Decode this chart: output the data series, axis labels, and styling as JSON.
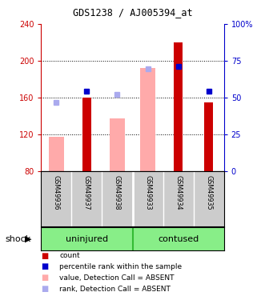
{
  "title": "GDS1238 / AJ005394_at",
  "samples": [
    "GSM49936",
    "GSM49937",
    "GSM49938",
    "GSM49933",
    "GSM49934",
    "GSM49935"
  ],
  "group_labels": [
    "uninjured",
    "contused"
  ],
  "group_label_text": "shock",
  "ylim_left": [
    80,
    240
  ],
  "ylim_right": [
    0,
    100
  ],
  "yticks_left": [
    80,
    120,
    160,
    200,
    240
  ],
  "yticks_right": [
    0,
    25,
    50,
    75,
    100
  ],
  "ytick_labels_left": [
    "80",
    "120",
    "160",
    "200",
    "240"
  ],
  "ytick_labels_right": [
    "0",
    "25",
    "50",
    "75",
    "100%"
  ],
  "bar_values_red": [
    null,
    160,
    null,
    null,
    220,
    155
  ],
  "bar_values_pink": [
    117,
    null,
    137,
    192,
    null,
    null
  ],
  "dot_values_blue": [
    null,
    167,
    null,
    null,
    194,
    167
  ],
  "dot_values_lightblue": [
    155,
    null,
    163,
    191,
    null,
    null
  ],
  "color_red": "#cc0000",
  "color_pink": "#ffaaaa",
  "color_blue": "#0000cc",
  "color_lightblue": "#aaaaee",
  "color_group_bg": "#88ee88",
  "color_sample_bg": "#cccccc",
  "color_axis_left": "#cc0000",
  "color_axis_right": "#0000cc",
  "red_bar_width": 0.3,
  "pink_bar_width": 0.5,
  "legend_items": [
    {
      "label": "count",
      "color": "#cc0000"
    },
    {
      "label": "percentile rank within the sample",
      "color": "#0000cc"
    },
    {
      "label": "value, Detection Call = ABSENT",
      "color": "#ffaaaa"
    },
    {
      "label": "rank, Detection Call = ABSENT",
      "color": "#aaaaee"
    }
  ]
}
